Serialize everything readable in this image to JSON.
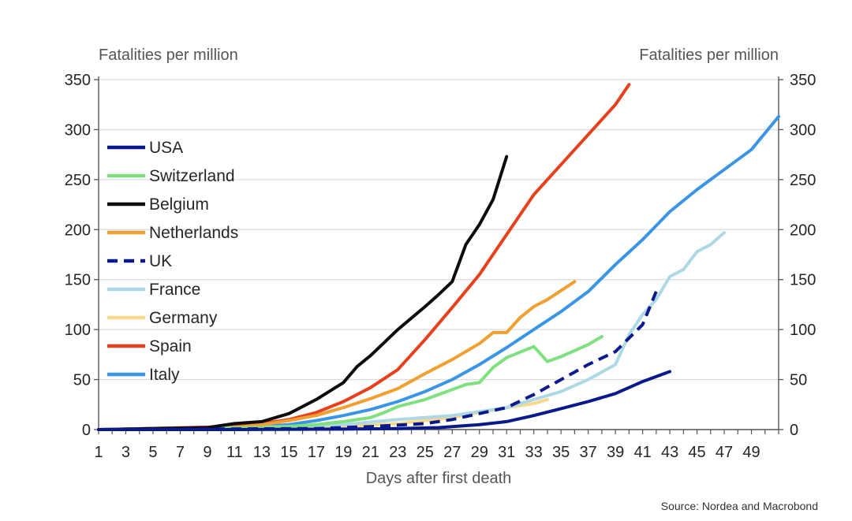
{
  "chart_data": {
    "type": "line",
    "left_axis_title": "Fatalities per million",
    "right_axis_title": "Fatalities per million",
    "xlabel": "Days after first death",
    "source": "Source: Nordea and Macrobond",
    "xlim": [
      1,
      51
    ],
    "ylim": [
      0,
      350
    ],
    "x_ticks": [
      1,
      3,
      5,
      7,
      9,
      11,
      13,
      15,
      17,
      19,
      21,
      23,
      25,
      27,
      29,
      31,
      33,
      35,
      37,
      39,
      41,
      43,
      45,
      47,
      49
    ],
    "y_ticks": [
      0,
      50,
      100,
      150,
      200,
      250,
      300,
      350
    ],
    "grid": "horizontal",
    "legend_position": "top-left",
    "series": [
      {
        "name": "USA",
        "color": "#0a1a8c",
        "dash": false,
        "x": [
          1,
          11,
          19,
          23,
          26,
          29,
          31,
          33,
          35,
          37,
          39,
          41,
          43
        ],
        "y": [
          0,
          0,
          0.5,
          1,
          2,
          5,
          8,
          14,
          21,
          28,
          36,
          48,
          58
        ]
      },
      {
        "name": "Switzerland",
        "color": "#7ee07e",
        "dash": false,
        "x": [
          1,
          13,
          15,
          17,
          19,
          21,
          22,
          23,
          25,
          27,
          28,
          29,
          30,
          31,
          33,
          34,
          35,
          37,
          38
        ],
        "y": [
          0,
          2,
          3,
          5,
          8,
          12,
          17,
          23,
          30,
          40,
          45,
          47,
          62,
          72,
          83,
          68,
          73,
          85,
          93
        ]
      },
      {
        "name": "Belgium",
        "color": "#0d0d0d",
        "dash": false,
        "x": [
          1,
          9,
          11,
          13,
          15,
          17,
          19,
          20,
          21,
          23,
          25,
          26,
          27,
          28,
          29,
          30,
          31
        ],
        "y": [
          0,
          2,
          6,
          8,
          16,
          30,
          47,
          63,
          74,
          100,
          123,
          135,
          148,
          185,
          205,
          230,
          273
        ]
      },
      {
        "name": "Netherlands",
        "color": "#f0a030",
        "dash": false,
        "x": [
          1,
          11,
          13,
          15,
          17,
          19,
          21,
          23,
          25,
          27,
          29,
          30,
          31,
          32,
          33,
          34,
          35,
          36
        ],
        "y": [
          0,
          2,
          5,
          9,
          14,
          22,
          31,
          41,
          56,
          70,
          86,
          97,
          97,
          112,
          123,
          130,
          139,
          148
        ]
      },
      {
        "name": "UK",
        "color": "#0a1a8c",
        "dash": true,
        "x": [
          1,
          17,
          21,
          25,
          27,
          29,
          31,
          33,
          35,
          37,
          39,
          41,
          42
        ],
        "y": [
          0,
          1,
          3,
          6,
          10,
          16,
          22,
          35,
          50,
          65,
          78,
          105,
          138
        ]
      },
      {
        "name": "France",
        "color": "#add8e6",
        "dash": false,
        "x": [
          1,
          15,
          19,
          23,
          27,
          29,
          31,
          33,
          35,
          37,
          39,
          40,
          41,
          42,
          43,
          44,
          45,
          46,
          47
        ],
        "y": [
          0,
          3,
          5,
          10,
          14,
          18,
          22,
          30,
          38,
          50,
          65,
          95,
          115,
          130,
          153,
          160,
          178,
          185,
          197
        ]
      },
      {
        "name": "Germany",
        "color": "#f8d88a",
        "dash": false,
        "x": [
          1,
          15,
          19,
          23,
          27,
          29,
          31,
          33,
          34
        ],
        "y": [
          0,
          1,
          3,
          6,
          12,
          17,
          22,
          26,
          30
        ]
      },
      {
        "name": "Spain",
        "color": "#e8401c",
        "dash": false,
        "x": [
          1,
          11,
          13,
          15,
          17,
          19,
          21,
          23,
          25,
          27,
          29,
          31,
          33,
          35,
          37,
          39,
          40
        ],
        "y": [
          0,
          3,
          6,
          10,
          17,
          28,
          42,
          60,
          90,
          122,
          155,
          195,
          235,
          265,
          295,
          325,
          345
        ]
      },
      {
        "name": "Italy",
        "color": "#3a95e6",
        "dash": false,
        "x": [
          1,
          13,
          15,
          17,
          19,
          21,
          23,
          25,
          27,
          29,
          31,
          33,
          35,
          37,
          39,
          41,
          43,
          45,
          47,
          49,
          51
        ],
        "y": [
          0,
          3,
          5,
          9,
          14,
          20,
          28,
          38,
          50,
          65,
          82,
          100,
          118,
          138,
          165,
          190,
          218,
          240,
          260,
          280,
          313
        ]
      }
    ]
  }
}
